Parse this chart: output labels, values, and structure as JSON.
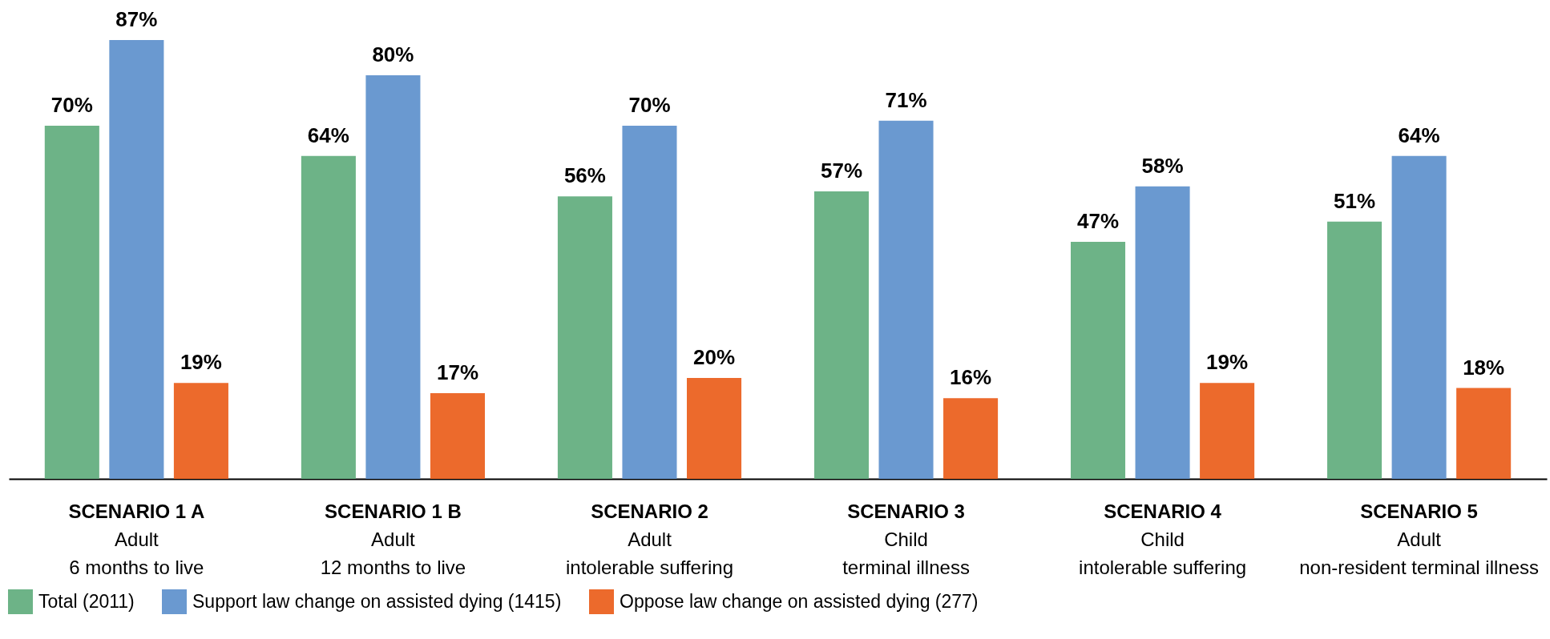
{
  "chart_data": {
    "type": "bar",
    "categories": [
      "SCENARIO 1 A\nAdult\n6 months to live",
      "SCENARIO 1 B\nAdult\n12 months to live",
      "SCENARIO 2\nAdult\nintolerable suffering",
      "SCENARIO 3\nChild\nterminal illness",
      "SCENARIO 4\nChild\nintolerable suffering",
      "SCENARIO 5\nAdult\nnon-resident terminal illness"
    ],
    "series": [
      {
        "name": "Total (2011)",
        "color": "#6db387",
        "values": [
          70,
          64,
          56,
          57,
          47,
          51
        ],
        "value_labels": [
          "70%",
          "64%",
          "56%",
          "57%",
          "47%",
          "51%"
        ]
      },
      {
        "name": "Support law change on assisted dying (1415)",
        "color": "#6a99d0",
        "values": [
          87,
          80,
          70,
          71,
          58,
          64
        ],
        "value_labels": [
          "87%",
          "80%",
          "70%",
          "71%",
          "58%",
          "64%"
        ]
      },
      {
        "name": "Oppose law change on assisted dying (277)",
        "color": "#ec6a2c",
        "values": [
          19,
          17,
          20,
          16,
          19,
          18
        ],
        "value_labels": [
          "19%",
          "17%",
          "20%",
          "16%",
          "19%",
          "18%"
        ]
      }
    ],
    "legend": "bottom left",
    "tick_labels": "x"
  }
}
